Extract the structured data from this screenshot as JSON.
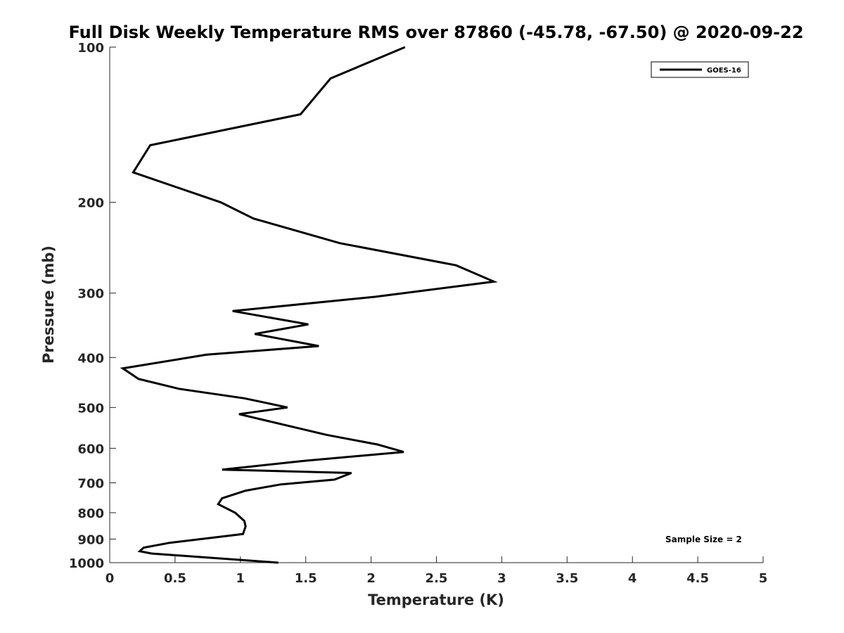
{
  "chart_data": {
    "type": "line",
    "title": "Full Disk Weekly Temperature RMS over 87860 (-45.78, -67.50) @ 2020-09-22",
    "xlabel": "Temperature (K)",
    "ylabel": "Pressure (mb)",
    "xlim": [
      0,
      5
    ],
    "ylim": [
      100,
      1000
    ],
    "y_scale": "log",
    "y_reversed": true,
    "x_ticks": [
      0,
      0.5,
      1,
      1.5,
      2,
      2.5,
      3,
      3.5,
      4,
      4.5,
      5
    ],
    "x_tick_labels": [
      "0",
      "0.5",
      "1",
      "1.5",
      "2",
      "2.5",
      "3",
      "3.5",
      "4",
      "4.5",
      "5"
    ],
    "y_ticks": [
      100,
      200,
      300,
      400,
      500,
      600,
      700,
      800,
      900,
      1000
    ],
    "y_tick_labels": [
      "100",
      "200",
      "300",
      "400",
      "500",
      "600",
      "700",
      "800",
      "900",
      "1000"
    ],
    "grid": false,
    "legend_position": "top-right",
    "series": [
      {
        "name": "GOES-16",
        "color": "#000000",
        "x": [
          2.26,
          1.69,
          1.46,
          0.31,
          0.18,
          0.85,
          1.1,
          1.76,
          2.65,
          2.94,
          2.03,
          0.94,
          1.52,
          1.11,
          1.6,
          0.74,
          0.1,
          0.22,
          0.53,
          1.03,
          1.36,
          0.99,
          1.33,
          1.66,
          2.05,
          2.25,
          1.48,
          0.86,
          1.85,
          1.72,
          1.31,
          1.04,
          0.86,
          0.83,
          0.96,
          1.03,
          1.04,
          1.02,
          0.46,
          0.26,
          0.23,
          0.32,
          1.29
        ],
        "y": [
          100,
          115,
          135,
          155,
          175,
          200,
          215,
          240,
          265,
          285,
          305,
          325,
          345,
          360,
          380,
          395,
          420,
          440,
          460,
          480,
          500,
          515,
          540,
          565,
          590,
          610,
          635,
          660,
          670,
          690,
          705,
          725,
          750,
          770,
          800,
          830,
          850,
          880,
          915,
          935,
          950,
          960,
          1000
        ]
      }
    ],
    "annotations": [
      {
        "text": "Sample Size = 2",
        "position": "bottom-right"
      }
    ]
  }
}
